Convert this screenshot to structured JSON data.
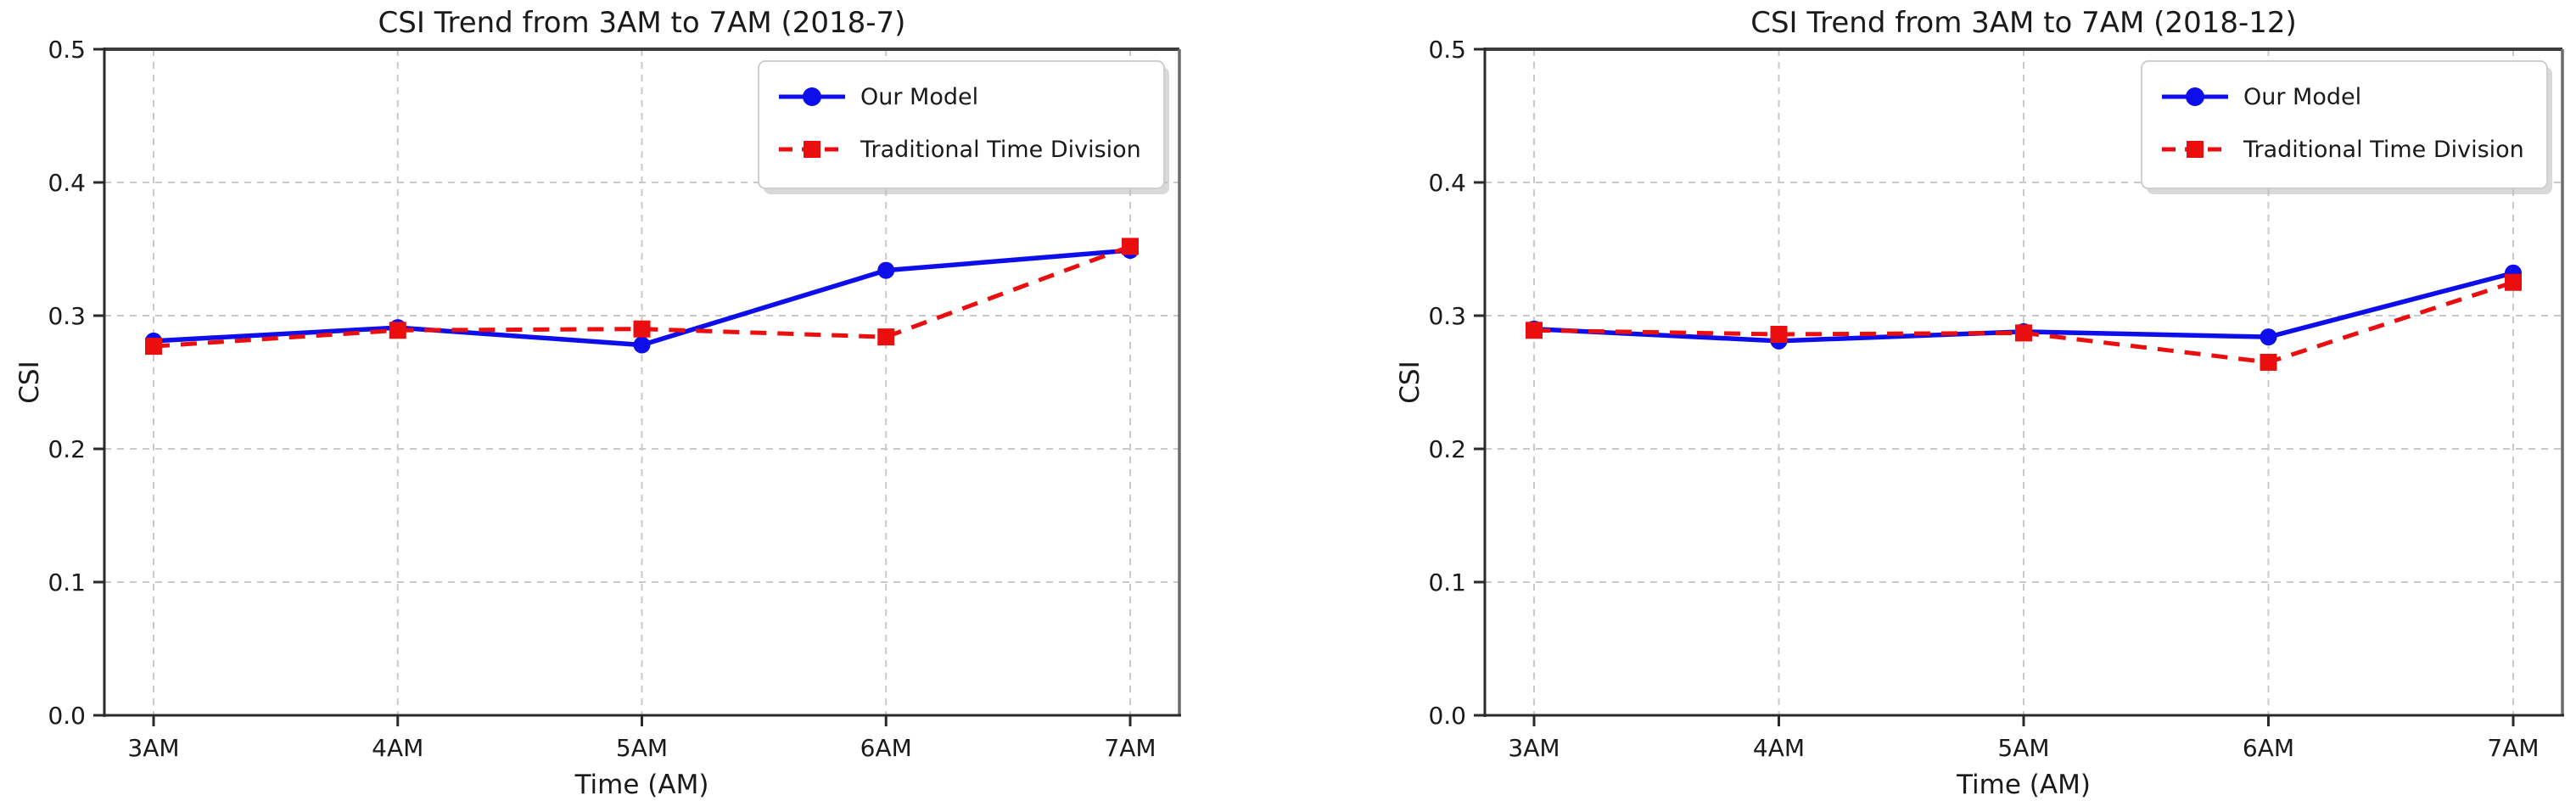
{
  "page": {
    "background": "#ffffff"
  },
  "chart_data": [
    {
      "type": "line",
      "title": "CSI Trend from 3AM to 7AM (2018-7)",
      "xlabel": "Time (AM)",
      "ylabel": "CSI",
      "categories": [
        "3AM",
        "4AM",
        "5AM",
        "6AM",
        "7AM"
      ],
      "ylim": [
        0.0,
        0.5
      ],
      "yticks": [
        0.0,
        0.1,
        0.2,
        0.3,
        0.4,
        0.5
      ],
      "grid": true,
      "grid_style": "dashed",
      "legend_position": "upper right",
      "series": [
        {
          "name": "Our Model",
          "color": "#0e0eea",
          "linestyle": "solid",
          "marker": "circle",
          "values": [
            0.281,
            0.291,
            0.278,
            0.334,
            0.349
          ]
        },
        {
          "name": "Traditional Time Division",
          "color": "#ea0e0e",
          "linestyle": "dashed",
          "marker": "square",
          "values": [
            0.277,
            0.289,
            0.29,
            0.284,
            0.352
          ]
        }
      ]
    },
    {
      "type": "line",
      "title": "CSI Trend from 3AM to 7AM (2018-12)",
      "xlabel": "Time (AM)",
      "ylabel": "CSI",
      "categories": [
        "3AM",
        "4AM",
        "5AM",
        "6AM",
        "7AM"
      ],
      "ylim": [
        0.0,
        0.5
      ],
      "yticks": [
        0.0,
        0.1,
        0.2,
        0.3,
        0.4,
        0.5
      ],
      "grid": true,
      "grid_style": "dashed",
      "legend_position": "upper right",
      "series": [
        {
          "name": "Our Model",
          "color": "#0e0eea",
          "linestyle": "solid",
          "marker": "circle",
          "values": [
            0.29,
            0.281,
            0.288,
            0.284,
            0.332
          ]
        },
        {
          "name": "Traditional Time Division",
          "color": "#ea0e0e",
          "linestyle": "dashed",
          "marker": "square",
          "values": [
            0.289,
            0.286,
            0.287,
            0.265,
            0.325
          ]
        }
      ]
    }
  ]
}
